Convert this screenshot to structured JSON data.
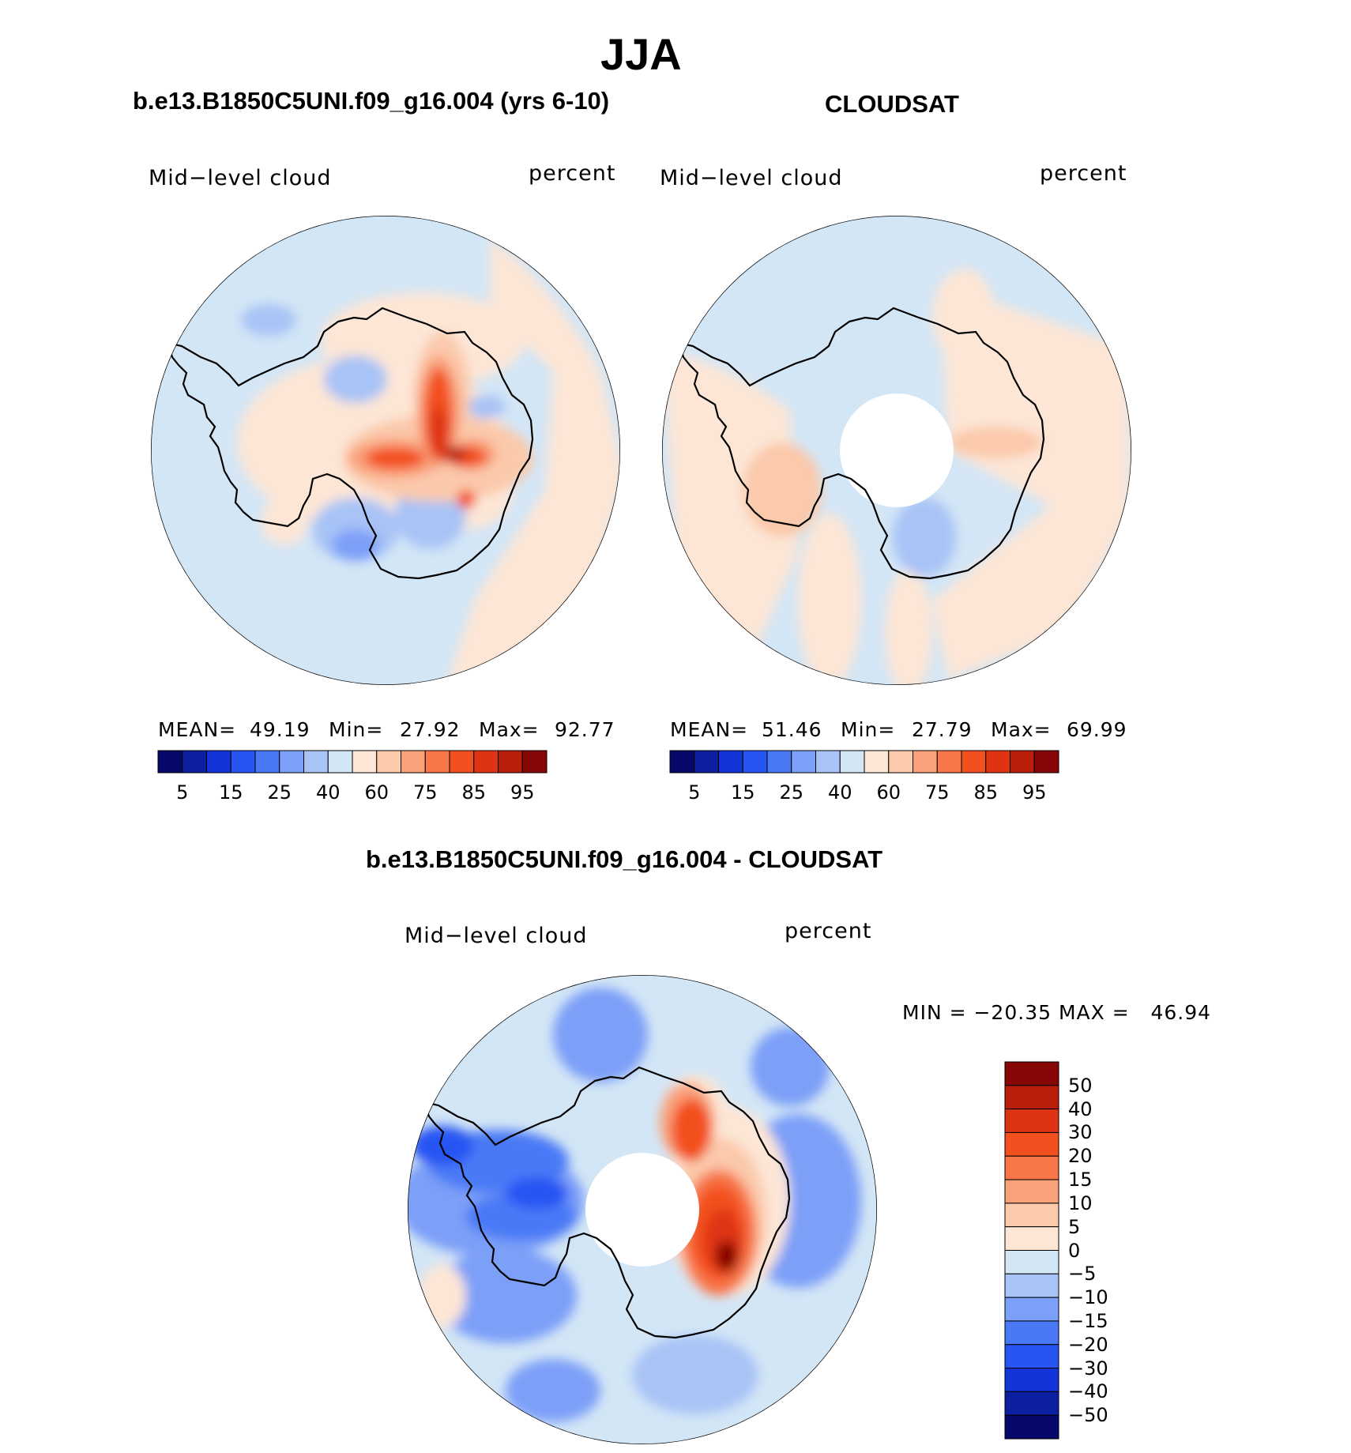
{
  "title": "JJA",
  "panels": [
    {
      "case_title": "b.e13.B1850C5UNI.f09_g16.004 (yrs 6-10)",
      "variable": "Mid−level cloud",
      "units": "percent",
      "stats": {
        "mean_label": "MEAN=",
        "mean": "49.19",
        "min_label": "Min=",
        "min": "27.92",
        "max_label": "Max=",
        "max": "92.77"
      },
      "colorbar_labels": [
        "5",
        "15",
        "25",
        "40",
        "60",
        "75",
        "85",
        "95"
      ]
    },
    {
      "case_title": "CLOUDSAT",
      "variable": "Mid−level cloud",
      "units": "percent",
      "stats": {
        "mean_label": "MEAN=",
        "mean": "51.46",
        "min_label": "Min=",
        "min": "27.79",
        "max_label": "Max=",
        "max": "69.99"
      },
      "colorbar_labels": [
        "5",
        "15",
        "25",
        "40",
        "60",
        "75",
        "85",
        "95"
      ]
    },
    {
      "case_title": "b.e13.B1850C5UNI.f09_g16.004 - CLOUDSAT",
      "variable": "Mid−level cloud",
      "units": "percent",
      "stats_text": "MIN = −20.35 MAX =   46.94",
      "colorbar_labels": [
        "50",
        "40",
        "30",
        "20",
        "15",
        "10",
        "5",
        "0",
        "−5",
        "−10",
        "−15",
        "−20",
        "−30",
        "−40",
        "−50"
      ]
    }
  ],
  "colors": {
    "abs_scale": [
      "#08086b",
      "#0b1fa0",
      "#1234d9",
      "#2655f3",
      "#4a79f6",
      "#7c9ff8",
      "#a8c3f6",
      "#d3e6f6",
      "#fde6d6",
      "#fbc9ab",
      "#f9a27a",
      "#f87648",
      "#f3501f",
      "#de3413",
      "#b91e0a",
      "#870606"
    ],
    "diff_scale": [
      "#870606",
      "#b91e0a",
      "#de3413",
      "#f3501f",
      "#f87648",
      "#f9a27a",
      "#fbc9ab",
      "#fde6d6",
      "#d3e6f6",
      "#a8c3f6",
      "#7c9ff8",
      "#4a79f6",
      "#2655f3",
      "#1234d9",
      "#0b1fa0",
      "#08086b"
    ]
  }
}
